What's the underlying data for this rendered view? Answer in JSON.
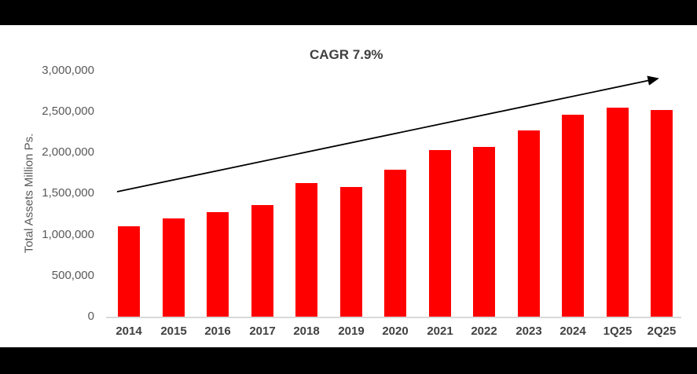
{
  "page": {
    "background_color": "#ffffff",
    "letterbox_color": "#000000"
  },
  "chart_data": {
    "type": "bar",
    "title": "CAGR 7.9%",
    "xlabel": "",
    "ylabel": "Total Assets Million Ps.",
    "categories": [
      "2014",
      "2015",
      "2016",
      "2017",
      "2018",
      "2019",
      "2020",
      "2021",
      "2022",
      "2023",
      "2024",
      "1Q25",
      "2Q25"
    ],
    "values": [
      1100000,
      1200000,
      1275000,
      1360000,
      1625000,
      1580000,
      1790000,
      2030000,
      2070000,
      2270000,
      2465000,
      2550000,
      2525000
    ],
    "ylim": [
      0,
      3000000
    ],
    "yticks": [
      0,
      500000,
      1000000,
      1500000,
      2000000,
      2500000,
      3000000
    ],
    "ytick_labels": [
      "0",
      "500,000",
      "1,000,000",
      "1,500,000",
      "2,000,000",
      "2,500,000",
      "3,000,000"
    ],
    "bar_color": "#ff0000",
    "axis_line_color": "#d9d9d9",
    "tick_label_color": "#595959",
    "category_label_color": "#404040",
    "grid": false,
    "legend": "none",
    "annotations": [
      {
        "name": "trend-arrow",
        "type": "arrow",
        "color": "#000000",
        "from_value": 1520000,
        "to_value": 2910000
      }
    ]
  }
}
